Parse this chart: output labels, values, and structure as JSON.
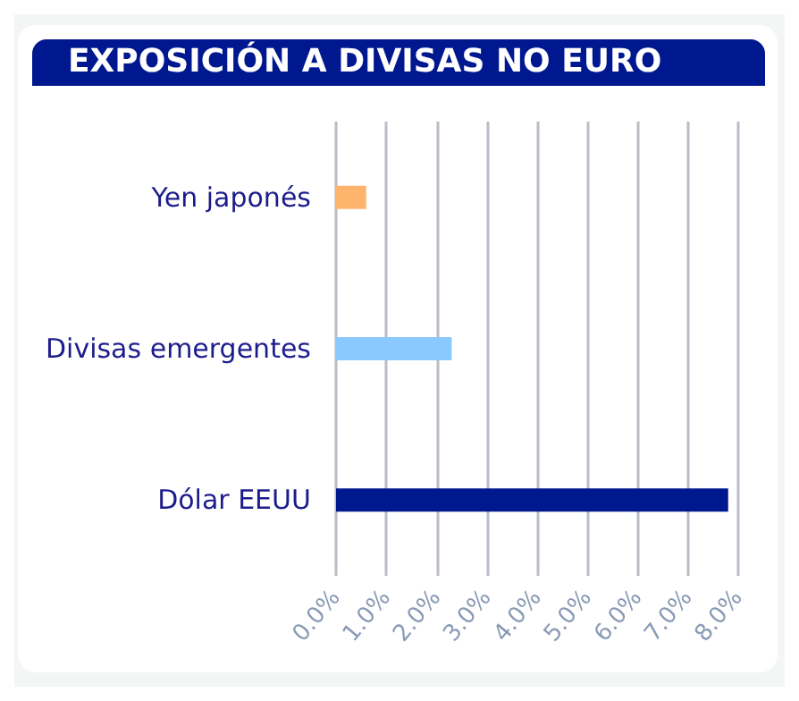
{
  "chart_data": {
    "type": "bar",
    "orientation": "horizontal",
    "title": "EXPOSICIÓN A DIVISAS NO EURO",
    "categories": [
      "Yen japonés",
      "Divisas emergentes",
      "Dólar EEUU"
    ],
    "values": [
      0.6,
      2.3,
      7.8
    ],
    "colors": [
      "#ffb46e",
      "#8ac8ff",
      "#00188f"
    ],
    "xlim": [
      0,
      8
    ],
    "xticks": [
      {
        "value": 0,
        "label": "0.0%"
      },
      {
        "value": 1,
        "label": "1.0%"
      },
      {
        "value": 2,
        "label": "2.0%"
      },
      {
        "value": 3,
        "label": "3.0%"
      },
      {
        "value": 4,
        "label": "4.0%"
      },
      {
        "value": 5,
        "label": "5.0%"
      },
      {
        "value": 6,
        "label": "6.0%"
      },
      {
        "value": 7,
        "label": "7.0%"
      },
      {
        "value": 8,
        "label": "8.0%"
      }
    ],
    "grid": "x"
  }
}
